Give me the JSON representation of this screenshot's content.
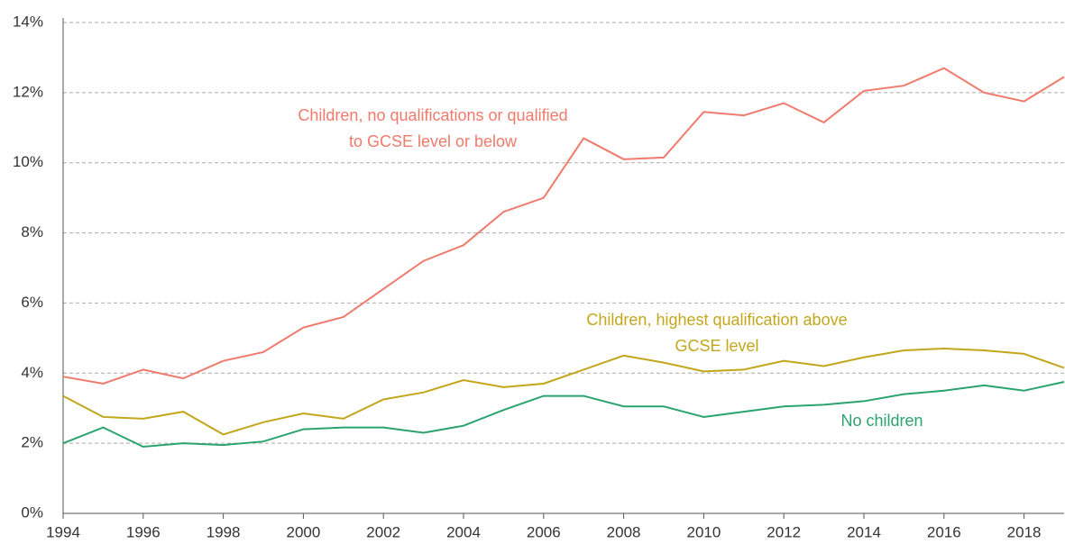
{
  "chart_data": {
    "type": "line",
    "x": [
      1994,
      1995,
      1996,
      1997,
      1998,
      1999,
      2000,
      2001,
      2002,
      2003,
      2004,
      2005,
      2006,
      2007,
      2008,
      2009,
      2010,
      2011,
      2012,
      2013,
      2014,
      2015,
      2016,
      2017,
      2018,
      2019
    ],
    "series": [
      {
        "name": "Children, no qualifications or qualified to GCSE level or below",
        "color": "#f07a6c",
        "values": [
          3.9,
          3.7,
          4.1,
          3.85,
          4.35,
          4.6,
          5.3,
          5.6,
          6.4,
          7.2,
          7.65,
          8.6,
          9.0,
          10.7,
          10.1,
          10.15,
          11.45,
          11.35,
          11.7,
          11.15,
          12.05,
          12.2,
          12.7,
          12.0,
          11.75,
          12.45
        ]
      },
      {
        "name": "Children, highest qualification above GCSE level",
        "color": "#c2a61c",
        "values": [
          3.35,
          2.75,
          2.7,
          2.9,
          2.25,
          2.6,
          2.85,
          2.7,
          3.25,
          3.45,
          3.8,
          3.6,
          3.7,
          4.1,
          4.5,
          4.3,
          4.05,
          4.1,
          4.35,
          4.2,
          4.45,
          4.65,
          4.7,
          4.65,
          4.55,
          4.15
        ]
      },
      {
        "name": "No children",
        "color": "#2aa36f",
        "values": [
          2.0,
          2.45,
          1.9,
          2.0,
          1.95,
          2.05,
          2.4,
          2.45,
          2.45,
          2.3,
          2.5,
          2.95,
          3.35,
          3.35,
          3.05,
          3.05,
          2.75,
          2.9,
          3.05,
          3.1,
          3.2,
          3.4,
          3.5,
          3.65,
          3.5,
          3.75
        ]
      }
    ],
    "xlim": [
      1994,
      2019
    ],
    "xticks": [
      1994,
      1996,
      1998,
      2000,
      2002,
      2004,
      2006,
      2008,
      2010,
      2012,
      2014,
      2016,
      2018
    ],
    "ylim": [
      0,
      14
    ],
    "yticks": [
      {
        "value": 0,
        "label": "0%"
      },
      {
        "value": 2,
        "label": "2%"
      },
      {
        "value": 4,
        "label": "4%"
      },
      {
        "value": 6,
        "label": "6%"
      },
      {
        "value": 8,
        "label": "8%"
      },
      {
        "value": 10,
        "label": "10%"
      },
      {
        "value": 12,
        "label": "12%"
      },
      {
        "value": 14,
        "label": "14%"
      }
    ],
    "grid": true
  }
}
